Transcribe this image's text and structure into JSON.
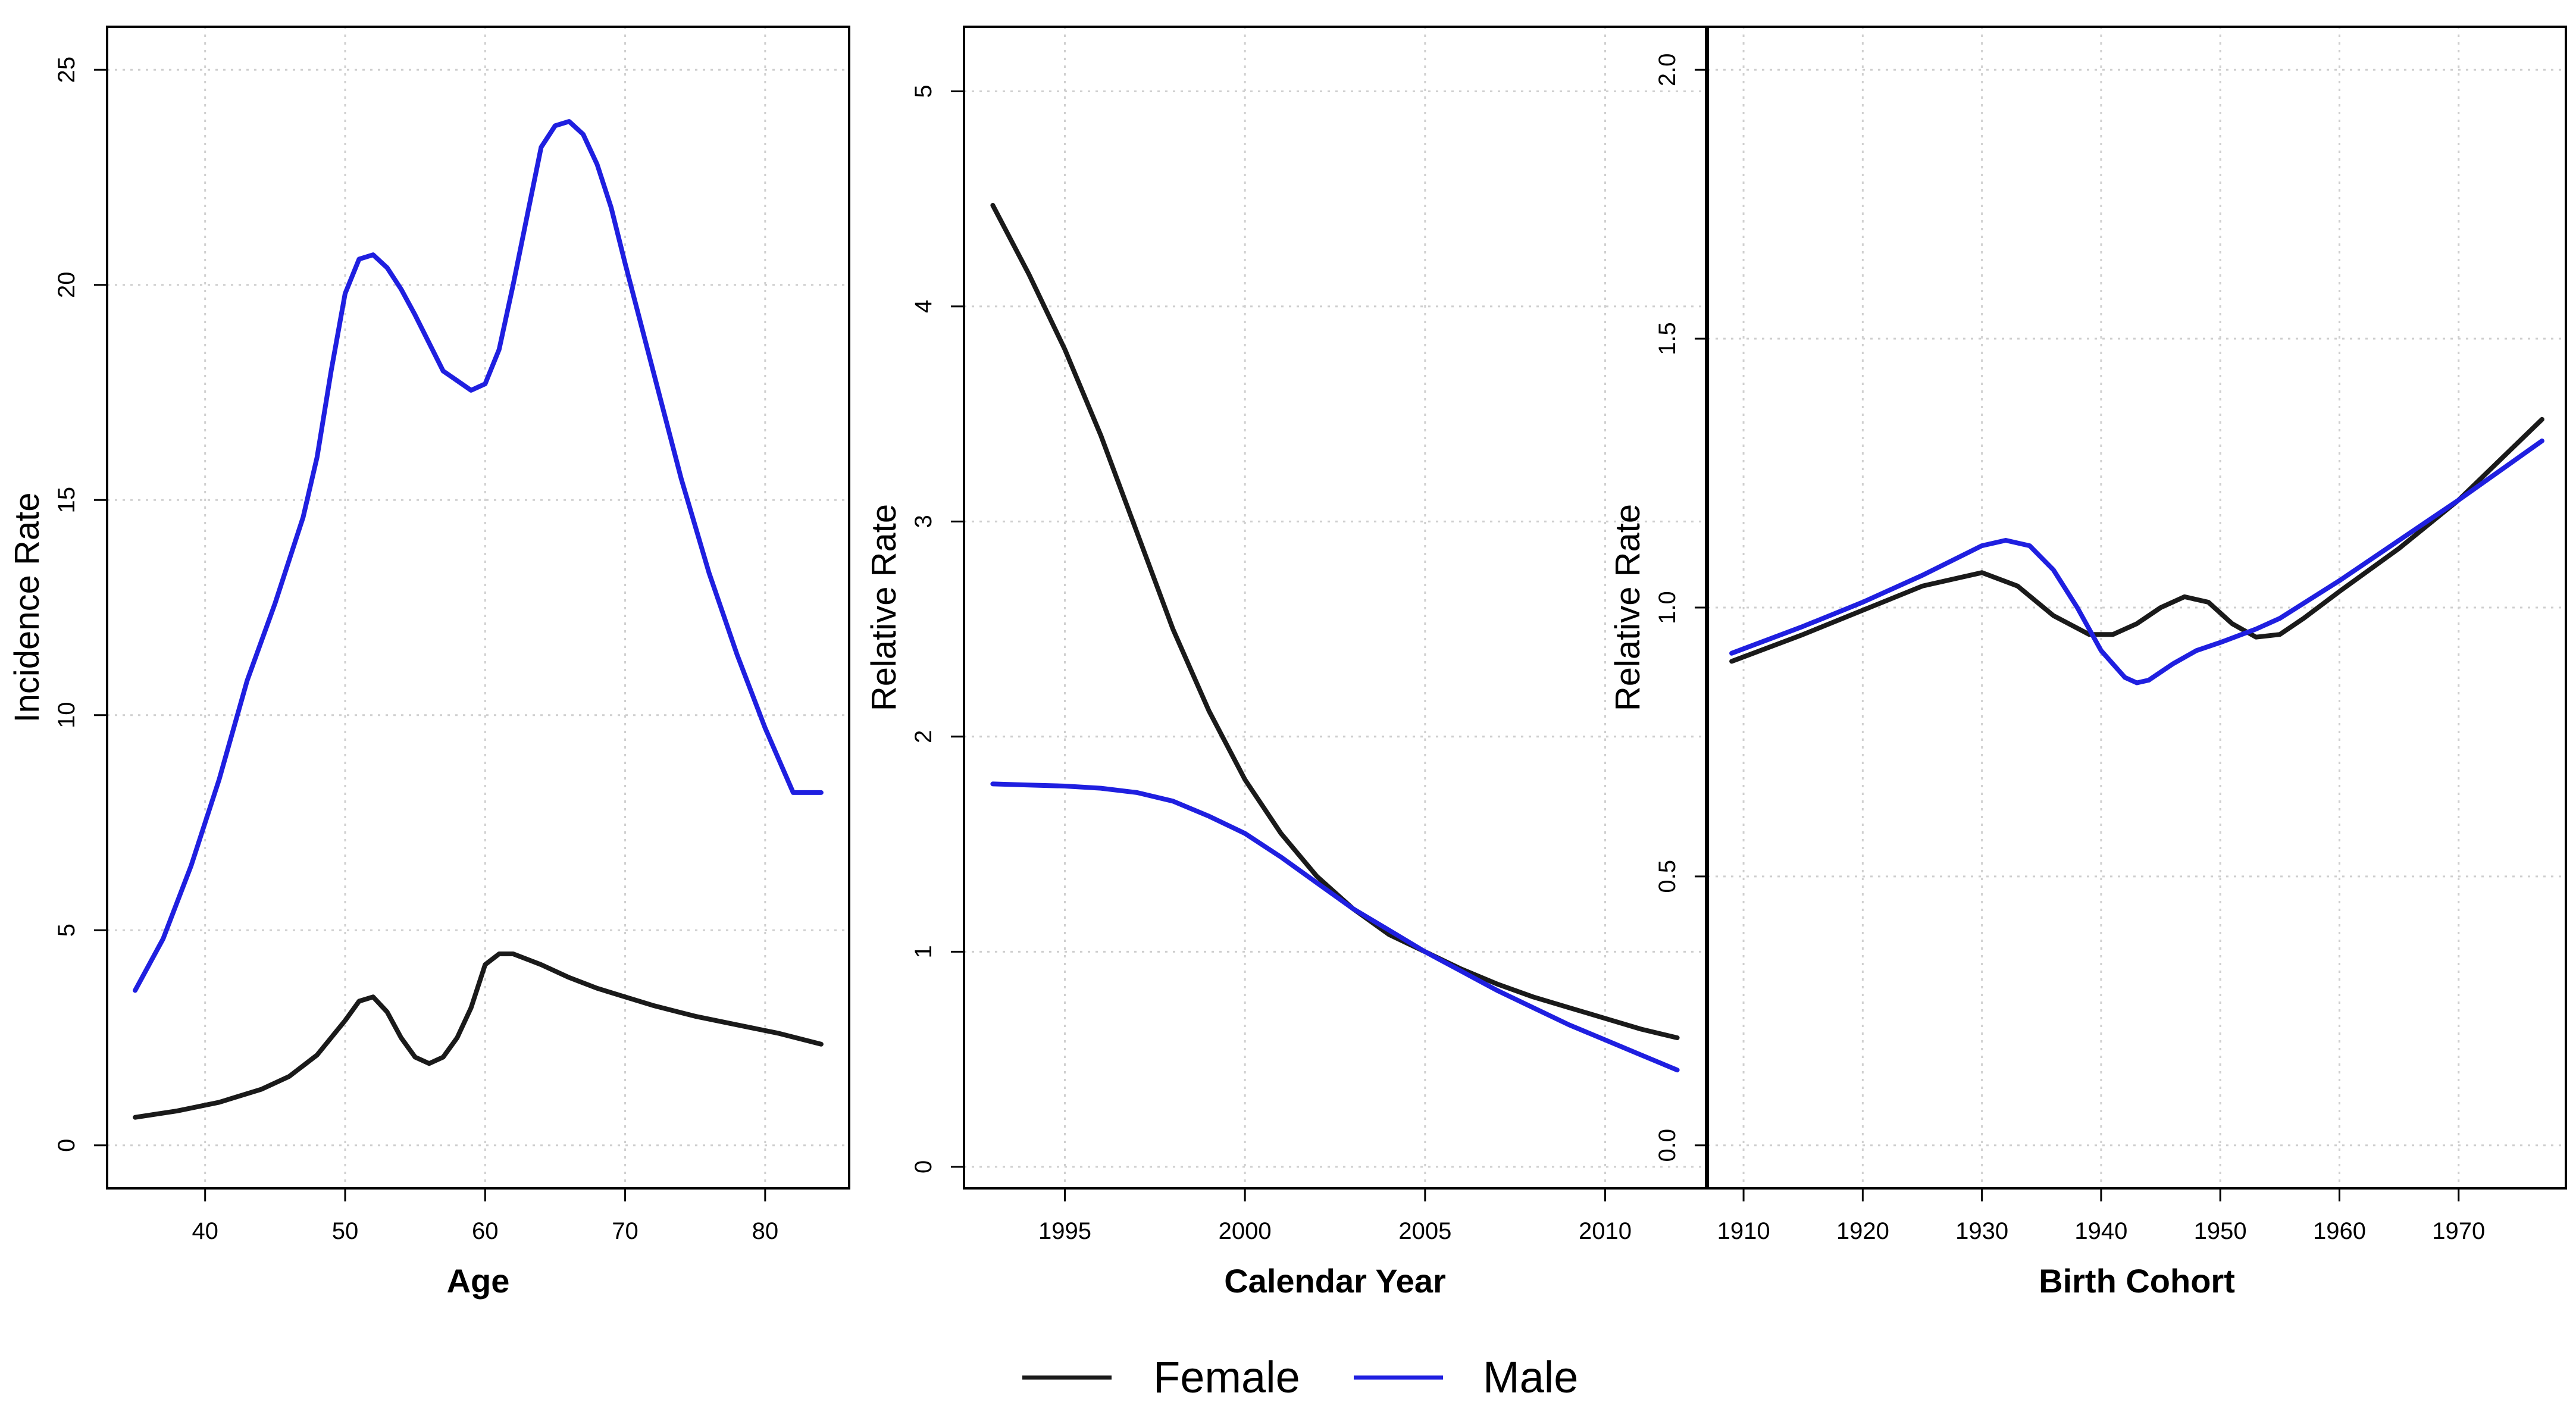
{
  "legend": {
    "entries": [
      {
        "label": "Female",
        "color": "#1a1a1a"
      },
      {
        "label": "Male",
        "color": "#1f1fe0"
      }
    ]
  },
  "chart_data": [
    {
      "type": "line",
      "xlabel": "Age",
      "ylabel": "Incidence Rate",
      "xlim": [
        33.0,
        86.0
      ],
      "ylim": [
        -1.0,
        26.0
      ],
      "xticks": [
        40,
        50,
        60,
        70,
        80
      ],
      "yticks": [
        0,
        5,
        10,
        15,
        20,
        25
      ],
      "grid": true,
      "series": [
        {
          "name": "Female",
          "color": "#1a1a1a",
          "x": [
            35,
            38,
            41,
            44,
            46,
            48,
            50,
            51,
            52,
            53,
            54,
            55,
            56,
            57,
            58,
            59,
            60,
            61,
            62,
            64,
            66,
            68,
            70,
            72,
            75,
            78,
            81,
            84
          ],
          "y": [
            0.65,
            0.8,
            1.0,
            1.3,
            1.6,
            2.1,
            2.9,
            3.35,
            3.45,
            3.1,
            2.5,
            2.05,
            1.9,
            2.05,
            2.5,
            3.2,
            4.2,
            4.45,
            4.45,
            4.2,
            3.9,
            3.65,
            3.45,
            3.25,
            3.0,
            2.8,
            2.6,
            2.35
          ]
        },
        {
          "name": "Male",
          "color": "#1f1fe0",
          "x": [
            35,
            37,
            39,
            41,
            43,
            45,
            47,
            48,
            49,
            50,
            51,
            52,
            53,
            54,
            55,
            57,
            59,
            60,
            61,
            62,
            63,
            64,
            65,
            66,
            67,
            68,
            69,
            70,
            72,
            74,
            76,
            78,
            80,
            82,
            84
          ],
          "y": [
            3.6,
            4.8,
            6.5,
            8.5,
            10.8,
            12.6,
            14.6,
            16.0,
            18.0,
            19.8,
            20.6,
            20.7,
            20.4,
            19.9,
            19.3,
            18.0,
            17.55,
            17.7,
            18.5,
            20.0,
            21.6,
            23.2,
            23.7,
            23.8,
            23.5,
            22.8,
            21.8,
            20.5,
            18.0,
            15.5,
            13.3,
            11.4,
            9.7,
            8.2,
            8.2
          ]
        }
      ]
    },
    {
      "type": "line",
      "xlabel": "Calendar Year",
      "ylabel": "Relative Rate",
      "xlim": [
        1992.2,
        2012.8
      ],
      "ylim": [
        -0.1,
        5.3
      ],
      "xticks": [
        1995,
        2000,
        2005,
        2010
      ],
      "yticks": [
        0,
        1,
        2,
        3,
        4,
        5
      ],
      "grid": true,
      "series": [
        {
          "name": "Female",
          "color": "#1a1a1a",
          "x": [
            1993,
            1994,
            1995,
            1996,
            1997,
            1998,
            1999,
            2000,
            2001,
            2002,
            2003,
            2004,
            2005,
            2006,
            2007,
            2008,
            2009,
            2010,
            2011,
            2012
          ],
          "y": [
            4.47,
            4.15,
            3.8,
            3.4,
            2.95,
            2.5,
            2.12,
            1.8,
            1.55,
            1.35,
            1.2,
            1.08,
            1.0,
            0.92,
            0.85,
            0.79,
            0.74,
            0.69,
            0.64,
            0.6
          ]
        },
        {
          "name": "Male",
          "color": "#1f1fe0",
          "x": [
            1993,
            1994,
            1995,
            1996,
            1997,
            1998,
            1999,
            2000,
            2001,
            2002,
            2003,
            2004,
            2005,
            2006,
            2007,
            2008,
            2009,
            2010,
            2011,
            2012
          ],
          "y": [
            1.78,
            1.775,
            1.77,
            1.76,
            1.74,
            1.7,
            1.63,
            1.55,
            1.44,
            1.32,
            1.2,
            1.1,
            1.0,
            0.91,
            0.82,
            0.74,
            0.66,
            0.59,
            0.52,
            0.45
          ]
        }
      ]
    },
    {
      "type": "line",
      "xlabel": "Birth Cohort",
      "ylabel": "Relative Rate",
      "xlim": [
        1907.0,
        1979.0
      ],
      "ylim": [
        -0.08,
        2.08
      ],
      "xticks": [
        1910,
        1920,
        1930,
        1940,
        1950,
        1960,
        1970
      ],
      "yticks": [
        0.0,
        0.5,
        1.0,
        1.5,
        2.0
      ],
      "ytick_labels": [
        "0.0",
        "0.5",
        "1.0",
        "1.5",
        "2.0"
      ],
      "grid": true,
      "series": [
        {
          "name": "Female",
          "color": "#1a1a1a",
          "x": [
            1909,
            1915,
            1920,
            1925,
            1930,
            1933,
            1936,
            1939,
            1941,
            1943,
            1945,
            1947,
            1949,
            1951,
            1953,
            1955,
            1957,
            1960,
            1965,
            1970,
            1977
          ],
          "y": [
            0.9,
            0.95,
            0.995,
            1.04,
            1.065,
            1.04,
            0.985,
            0.95,
            0.95,
            0.97,
            1.0,
            1.02,
            1.01,
            0.97,
            0.945,
            0.95,
            0.98,
            1.03,
            1.11,
            1.2,
            1.35
          ]
        },
        {
          "name": "Male",
          "color": "#1f1fe0",
          "x": [
            1909,
            1915,
            1920,
            1925,
            1930,
            1932,
            1934,
            1936,
            1938,
            1940,
            1942,
            1943,
            1944,
            1946,
            1948,
            1950,
            1953,
            1955,
            1960,
            1965,
            1970,
            1977
          ],
          "y": [
            0.915,
            0.965,
            1.01,
            1.06,
            1.115,
            1.125,
            1.115,
            1.07,
            1.0,
            0.92,
            0.87,
            0.86,
            0.865,
            0.895,
            0.92,
            0.935,
            0.96,
            0.98,
            1.05,
            1.125,
            1.2,
            1.31
          ]
        }
      ]
    }
  ]
}
